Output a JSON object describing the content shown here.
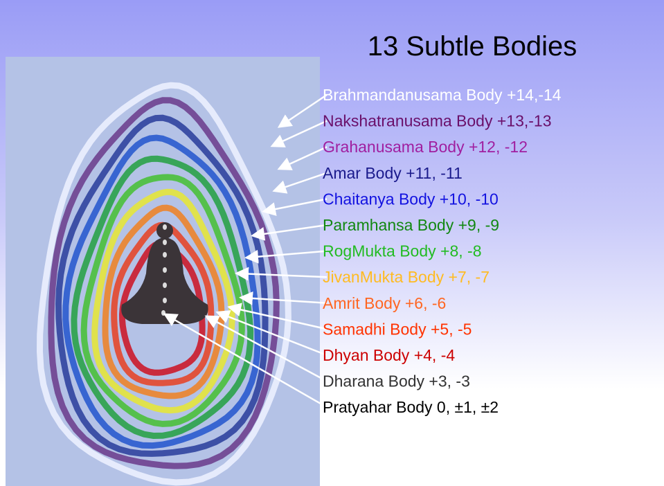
{
  "title": "13 Subtle Bodies",
  "bodies": [
    {
      "text": "Brahmandanusama  Body +14,-14",
      "color": "#ffffff"
    },
    {
      "text": "Nakshatranusama Body +13,-13",
      "color": "#6a0f6a"
    },
    {
      "text": "Grahanusama Body +12, -12",
      "color": "#a01fa0"
    },
    {
      "text": "Amar Body  +11, -11",
      "color": "#1a1a8c"
    },
    {
      "text": "Chaitanya Body  +10, -10",
      "color": "#1212e0"
    },
    {
      "text": "Paramhansa Body +9, -9",
      "color": "#128812"
    },
    {
      "text": "RogMukta Body +8, -8",
      "color": "#22bb22"
    },
    {
      "text": "JivanMukta Body +7, -7",
      "color": "#ffbb22"
    },
    {
      "text": "Amrit Body  +6, -6",
      "color": "#ff6622"
    },
    {
      "text": "Samadhi Body  +5, -5",
      "color": "#ff3300"
    },
    {
      "text": "Dhyan Body  +4, -4",
      "color": "#cc0000"
    },
    {
      "text": "Dharana Body +3, -3",
      "color": "#333333"
    },
    {
      "text": "Pratyahar Body 0, ±1, ±2",
      "color": "#000000"
    }
  ]
}
